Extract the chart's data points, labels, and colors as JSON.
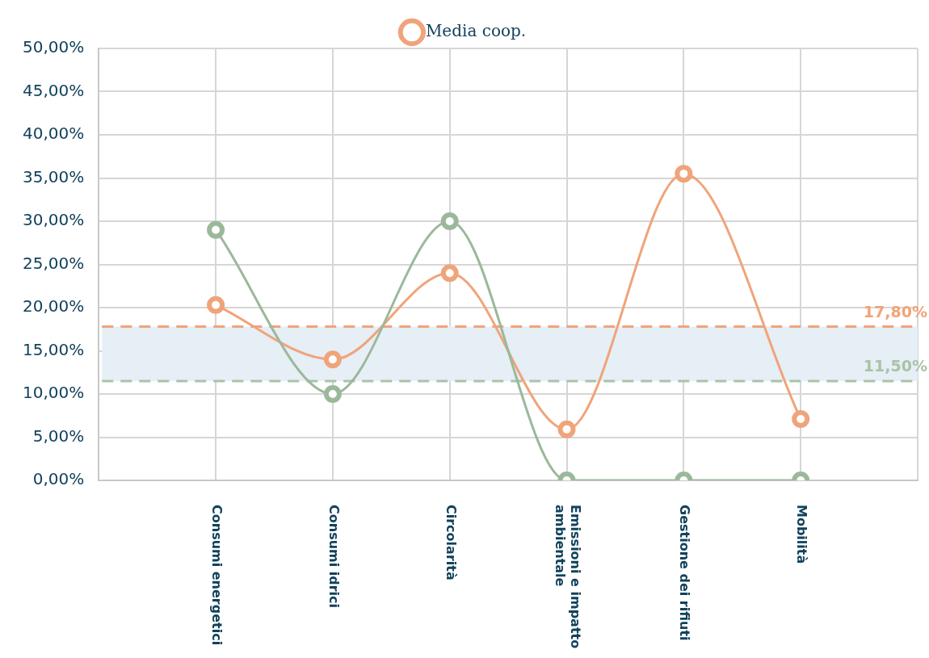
{
  "chart_data": {
    "type": "line",
    "categories": [
      null,
      "Consumi energetici",
      "Consumi idrici",
      "Circolarità",
      "Emissioni e impatto ambientale",
      "Gestione dei rifiuti",
      "Mobilità",
      null
    ],
    "series": [
      {
        "color": "#9bb89b",
        "values": [
          null,
          29,
          10,
          30,
          0,
          0,
          0,
          null
        ]
      },
      {
        "name": "Media coop.",
        "color": "#f0a47a",
        "values": [
          null,
          20.3,
          14,
          24,
          5.9,
          35.5,
          7.1,
          null
        ]
      }
    ],
    "ylim": [
      0,
      50
    ],
    "yticks": [
      {
        "value": 0,
        "label": "0,00%"
      },
      {
        "value": 5,
        "label": "5,00%"
      },
      {
        "value": 10,
        "label": "10,00%"
      },
      {
        "value": 15,
        "label": "15,00%"
      },
      {
        "value": 20,
        "label": "20,00%"
      },
      {
        "value": 25,
        "label": "25,00%"
      },
      {
        "value": 30,
        "label": "30,00%"
      },
      {
        "value": 35,
        "label": "35,00%"
      },
      {
        "value": 40,
        "label": "40,00%"
      },
      {
        "value": 45,
        "label": "45,00%"
      },
      {
        "value": 50,
        "label": "50,00%"
      }
    ],
    "ref_lines": [
      {
        "axis": "y",
        "value": 17.8,
        "label": "17,80%",
        "color": "#f0a47a",
        "line_style": "dashed"
      },
      {
        "axis": "y",
        "value": 11.5,
        "label": "11,50%",
        "color": "#a8c4a8",
        "line_style": "dashed"
      }
    ],
    "bands": [
      {
        "axis": "y",
        "from": 11.5,
        "to": 17.8,
        "color": "#e6eef6"
      }
    ],
    "grid": true,
    "legend": "top",
    "marker": "circle",
    "line_style": "solid"
  }
}
